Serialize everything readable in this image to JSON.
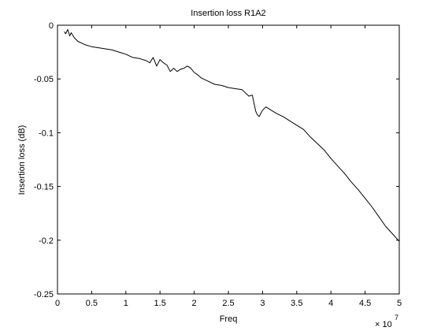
{
  "chart_data": {
    "type": "line",
    "title": "Insertion loss R1A2",
    "xlabel": "Freq",
    "ylabel": "Insertion loss (dB)",
    "x_multiplier_label": "× 10",
    "x_multiplier_exponent": "7",
    "xlim": [
      0,
      5
    ],
    "ylim": [
      -0.25,
      0
    ],
    "x_ticks": [
      0,
      0.5,
      1,
      1.5,
      2,
      2.5,
      3,
      3.5,
      4,
      4.5,
      5
    ],
    "x_tick_labels": [
      "0",
      "0.5",
      "1",
      "1.5",
      "2",
      "2.5",
      "3",
      "3.5",
      "4",
      "4.5",
      "5"
    ],
    "y_ticks": [
      0,
      -0.05,
      -0.1,
      -0.15,
      -0.2,
      -0.25
    ],
    "y_tick_labels": [
      "0",
      "-0.05",
      "-0.1",
      "-0.15",
      "-0.2",
      "-0.25"
    ],
    "grid": false,
    "line_color": "#000000",
    "series": [
      {
        "x": [
          0.1,
          0.12,
          0.15,
          0.18,
          0.2,
          0.25,
          0.3,
          0.4,
          0.5,
          0.6,
          0.7,
          0.8,
          0.9,
          1.0,
          1.1,
          1.2,
          1.3,
          1.35,
          1.4,
          1.45,
          1.5,
          1.55,
          1.6,
          1.65,
          1.7,
          1.75,
          1.8,
          1.85,
          1.9,
          1.95,
          2.0,
          2.05,
          2.1,
          2.2,
          2.3,
          2.4,
          2.5,
          2.6,
          2.7,
          2.8,
          2.85,
          2.9,
          2.92,
          2.95,
          3.0,
          3.05,
          3.1,
          3.2,
          3.3,
          3.4,
          3.5,
          3.6,
          3.7,
          3.8,
          3.9,
          4.0,
          4.1,
          4.2,
          4.3,
          4.4,
          4.5,
          4.6,
          4.7,
          4.8,
          4.9,
          5.0
        ],
        "values": [
          -0.006,
          -0.008,
          -0.004,
          -0.01,
          -0.007,
          -0.012,
          -0.015,
          -0.018,
          -0.02,
          -0.021,
          -0.022,
          -0.023,
          -0.025,
          -0.027,
          -0.03,
          -0.031,
          -0.033,
          -0.035,
          -0.03,
          -0.038,
          -0.032,
          -0.035,
          -0.037,
          -0.043,
          -0.04,
          -0.043,
          -0.041,
          -0.04,
          -0.038,
          -0.04,
          -0.044,
          -0.046,
          -0.049,
          -0.052,
          -0.055,
          -0.056,
          -0.058,
          -0.059,
          -0.06,
          -0.066,
          -0.065,
          -0.08,
          -0.083,
          -0.085,
          -0.079,
          -0.076,
          -0.078,
          -0.082,
          -0.085,
          -0.089,
          -0.093,
          -0.097,
          -0.104,
          -0.11,
          -0.116,
          -0.124,
          -0.131,
          -0.138,
          -0.146,
          -0.153,
          -0.161,
          -0.169,
          -0.178,
          -0.187,
          -0.194,
          -0.201
        ]
      }
    ]
  }
}
